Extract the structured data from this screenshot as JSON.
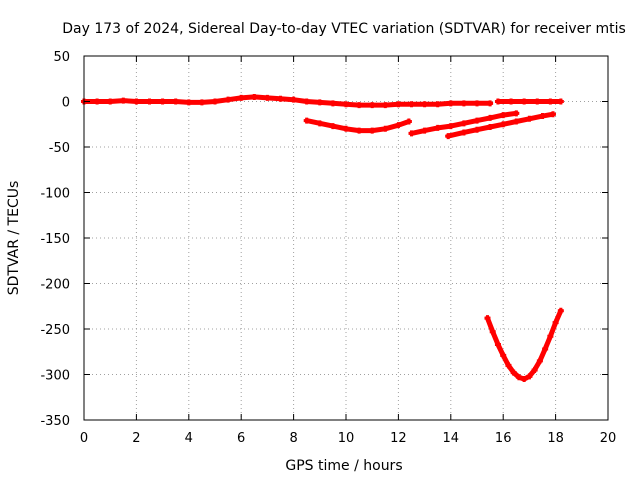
{
  "chart_data": {
    "type": "scatter",
    "title": "Day 173 of 2024, Sidereal Day-to-day VTEC variation (SDTVAR) for receiver mtis",
    "xlabel": "GPS time / hours",
    "ylabel": "SDTVAR / TECUs",
    "xlim": [
      0,
      20
    ],
    "ylim": [
      -350,
      50
    ],
    "xticks": [
      0,
      2,
      4,
      6,
      8,
      10,
      12,
      14,
      16,
      18,
      20
    ],
    "yticks": [
      50,
      0,
      -50,
      -100,
      -150,
      -200,
      -250,
      -300,
      -350
    ],
    "grid": true,
    "legend": "none",
    "color": "#ff0000",
    "series": [
      {
        "name": "track-1",
        "points": [
          [
            0,
            0
          ],
          [
            0.5,
            0
          ],
          [
            1,
            0
          ],
          [
            1.5,
            1
          ],
          [
            2,
            0
          ],
          [
            2.5,
            0
          ],
          [
            3,
            0
          ],
          [
            3.5,
            0
          ],
          [
            4,
            -1
          ],
          [
            4.5,
            -1
          ],
          [
            5,
            0
          ],
          [
            5.5,
            2
          ],
          [
            6,
            4
          ],
          [
            6.5,
            5
          ],
          [
            7,
            4
          ],
          [
            7.5,
            3
          ],
          [
            8,
            2
          ],
          [
            8.5,
            0
          ],
          [
            9,
            -1
          ],
          [
            9.5,
            -2
          ],
          [
            10,
            -3
          ],
          [
            10.5,
            -4
          ],
          [
            11,
            -4
          ],
          [
            11.5,
            -4
          ],
          [
            12,
            -3
          ],
          [
            12.5,
            -3
          ],
          [
            13,
            -3
          ],
          [
            13.5,
            -3
          ],
          [
            14,
            -2
          ],
          [
            14.5,
            -2
          ],
          [
            15,
            -2
          ],
          [
            15.5,
            -2
          ]
        ]
      },
      {
        "name": "track-2",
        "points": [
          [
            15.8,
            0
          ],
          [
            16.3,
            0
          ],
          [
            16.8,
            0
          ],
          [
            17.3,
            0
          ],
          [
            17.8,
            0
          ],
          [
            18.2,
            0
          ]
        ]
      },
      {
        "name": "track-3",
        "points": [
          [
            8.5,
            -21
          ],
          [
            9,
            -24
          ],
          [
            9.5,
            -27
          ],
          [
            10,
            -30
          ],
          [
            10.5,
            -32
          ],
          [
            11,
            -32
          ],
          [
            11.5,
            -30
          ],
          [
            12,
            -26
          ],
          [
            12.4,
            -22
          ]
        ]
      },
      {
        "name": "track-4",
        "points": [
          [
            12.5,
            -35
          ],
          [
            13,
            -32
          ],
          [
            13.5,
            -29
          ],
          [
            14,
            -27
          ],
          [
            14.5,
            -24
          ],
          [
            15,
            -21
          ],
          [
            15.5,
            -18
          ],
          [
            16,
            -15
          ],
          [
            16.5,
            -13
          ]
        ]
      },
      {
        "name": "track-5",
        "points": [
          [
            13.9,
            -38
          ],
          [
            14.5,
            -34
          ],
          [
            15,
            -31
          ],
          [
            15.5,
            -28
          ],
          [
            16,
            -25
          ],
          [
            16.5,
            -22
          ],
          [
            17,
            -19
          ],
          [
            17.5,
            -16
          ],
          [
            17.9,
            -14
          ]
        ]
      },
      {
        "name": "track-6",
        "points": [
          [
            15.4,
            -238
          ],
          [
            15.6,
            -253
          ],
          [
            15.8,
            -267
          ],
          [
            16,
            -279
          ],
          [
            16.2,
            -290
          ],
          [
            16.4,
            -298
          ],
          [
            16.6,
            -303
          ],
          [
            16.8,
            -305
          ],
          [
            17,
            -302
          ],
          [
            17.2,
            -295
          ],
          [
            17.4,
            -285
          ],
          [
            17.6,
            -272
          ],
          [
            17.8,
            -258
          ],
          [
            18,
            -243
          ],
          [
            18.2,
            -230
          ]
        ]
      }
    ]
  }
}
